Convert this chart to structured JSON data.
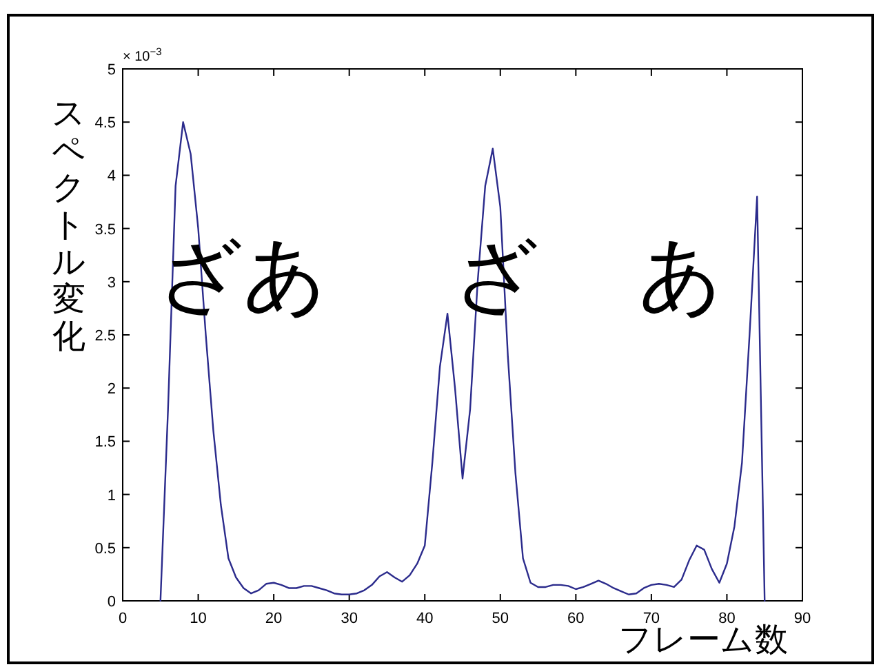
{
  "chart_data": {
    "type": "line",
    "xlabel": "フレーム数",
    "ylabel": "スペクトル変化",
    "x": [
      5,
      6,
      7,
      8,
      9,
      10,
      11,
      12,
      13,
      14,
      15,
      16,
      17,
      18,
      19,
      20,
      21,
      22,
      23,
      24,
      25,
      26,
      27,
      28,
      29,
      30,
      31,
      32,
      33,
      34,
      35,
      36,
      37,
      38,
      39,
      40,
      41,
      42,
      43,
      44,
      45,
      46,
      47,
      48,
      49,
      50,
      51,
      52,
      53,
      54,
      55,
      56,
      57,
      58,
      59,
      60,
      61,
      62,
      63,
      64,
      65,
      66,
      67,
      68,
      69,
      70,
      71,
      72,
      73,
      74,
      75,
      76,
      77,
      78,
      79,
      80,
      81,
      82,
      83,
      84,
      85
    ],
    "series": [
      {
        "color": "#2b2b8c",
        "values": [
          0,
          1.8,
          3.9,
          4.5,
          4.2,
          3.5,
          2.5,
          1.6,
          0.9,
          0.4,
          0.22,
          0.12,
          0.07,
          0.1,
          0.16,
          0.17,
          0.15,
          0.12,
          0.12,
          0.14,
          0.14,
          0.12,
          0.1,
          0.07,
          0.06,
          0.06,
          0.07,
          0.1,
          0.15,
          0.23,
          0.27,
          0.22,
          0.18,
          0.24,
          0.35,
          0.52,
          1.3,
          2.2,
          2.7,
          2.0,
          1.15,
          1.8,
          3.0,
          3.9,
          4.25,
          3.7,
          2.3,
          1.2,
          0.4,
          0.17,
          0.13,
          0.13,
          0.15,
          0.15,
          0.14,
          0.11,
          0.13,
          0.16,
          0.19,
          0.16,
          0.12,
          0.09,
          0.06,
          0.07,
          0.12,
          0.15,
          0.16,
          0.15,
          0.13,
          0.2,
          0.38,
          0.52,
          0.48,
          0.3,
          0.17,
          0.35,
          0.7,
          1.3,
          2.5,
          3.8,
          0
        ]
      }
    ],
    "xlim": [
      0,
      90
    ],
    "xticks": [
      0,
      10,
      20,
      30,
      40,
      50,
      60,
      70,
      80,
      90
    ],
    "ylim": [
      0,
      5
    ],
    "yticks": [
      0,
      0.5,
      1,
      1.5,
      2,
      2.5,
      3,
      3.5,
      4,
      4.5,
      5
    ],
    "marker": "none",
    "line_style": "solid",
    "annotations": [
      "× 10$^{−3}$",
      "ざあ",
      "ざ",
      "あ"
    ]
  }
}
